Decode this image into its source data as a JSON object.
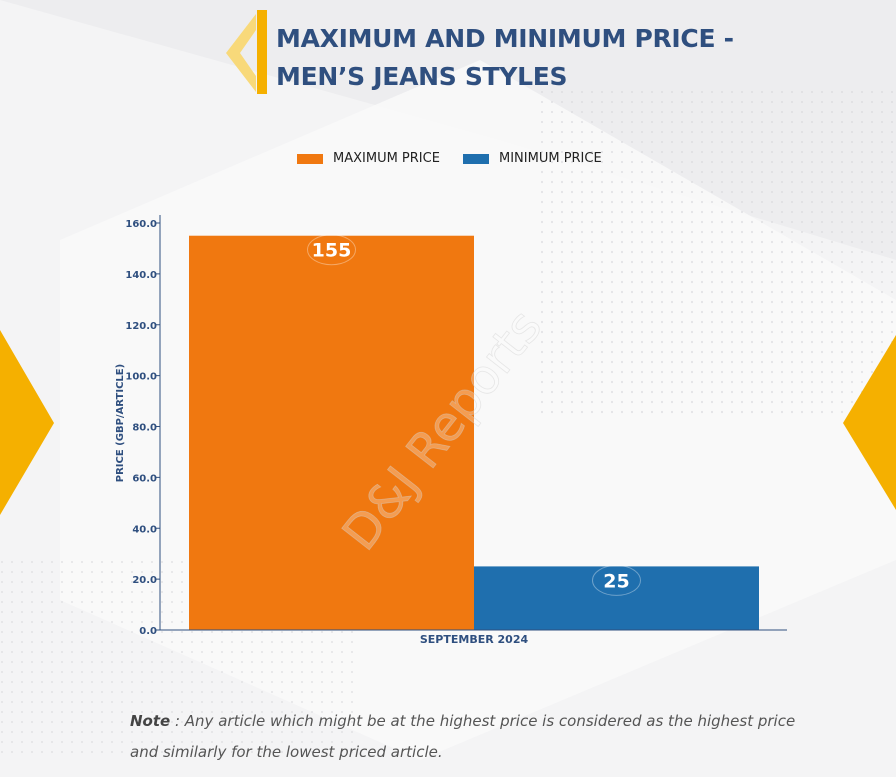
{
  "title": {
    "line1": "MAXIMUM AND MINIMUM PRICE -",
    "line2": "MEN’S JEANS STYLES"
  },
  "legend": [
    {
      "label": "MAXIMUM PRICE",
      "color": "#f07810"
    },
    {
      "label": "MINIMUM PRICE",
      "color": "#1f6fae"
    }
  ],
  "watermark": "D&J Reports",
  "note": {
    "label": "Note",
    "text": " : Any article which might be at the highest price is considered as the highest price and similarly for the lowest priced article."
  },
  "colors": {
    "accent": "#f5b000",
    "title": "#2f4f7f",
    "axis": "#2f4f7f"
  },
  "chart_data": {
    "type": "bar",
    "categories": [
      "SEPTEMBER 2024"
    ],
    "series": [
      {
        "name": "MAXIMUM PRICE",
        "values": [
          155
        ],
        "color": "#f07810"
      },
      {
        "name": "MINIMUM PRICE",
        "values": [
          25
        ],
        "color": "#1f6fae"
      }
    ],
    "data_labels": [
      "155",
      "25"
    ],
    "xlabel": "",
    "ylabel": "PRICE (GBP/ARTICLE)",
    "ylim": [
      0,
      160
    ],
    "yticks": [
      "0.0",
      "20.0",
      "40.0",
      "60.0",
      "80.0",
      "100.0",
      "120.0",
      "140.0",
      "160.0"
    ],
    "grid": false,
    "legend_position": "top"
  }
}
